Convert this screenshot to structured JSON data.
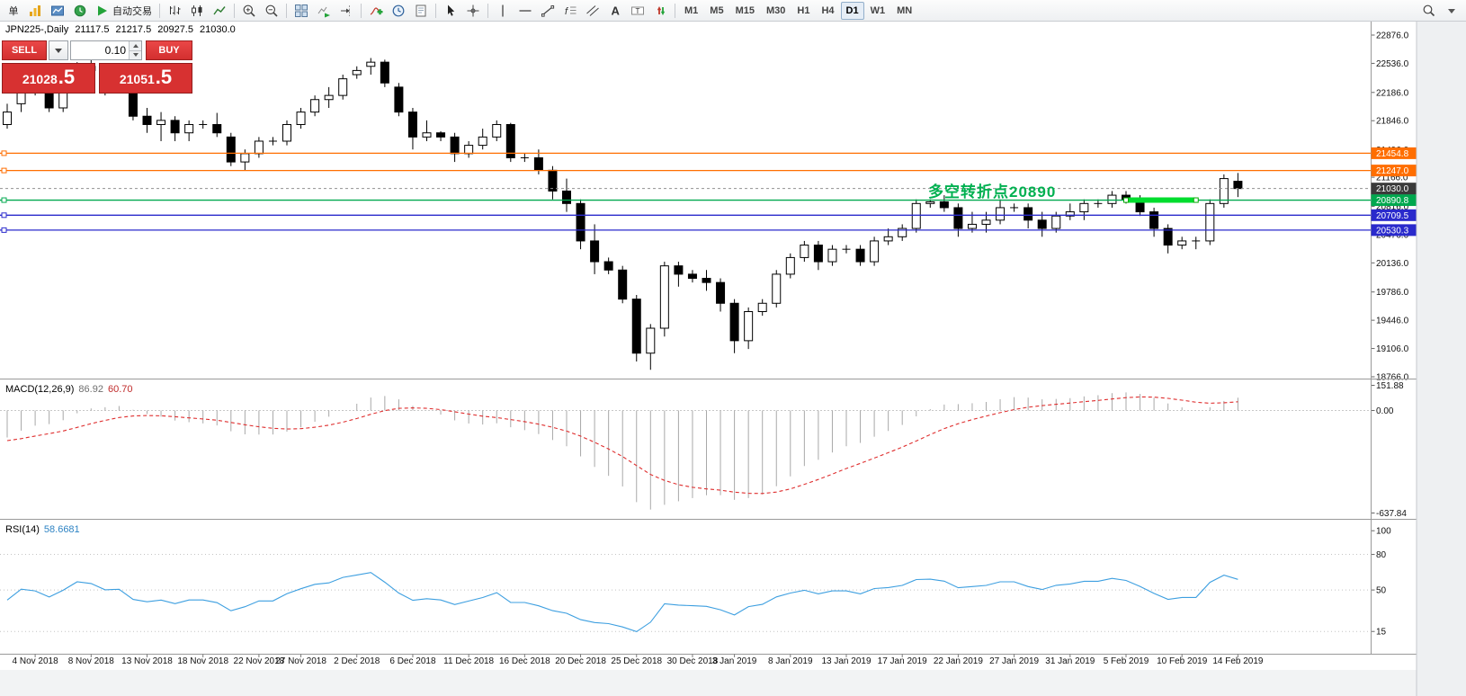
{
  "toolbar": {
    "groups": [
      {
        "items": [
          {
            "name": "new-order-button",
            "label": "单"
          },
          {
            "name": "profiles-button",
            "icon": "profiles-icon"
          },
          {
            "name": "new-chart-button",
            "icon": "new-chart-icon"
          },
          {
            "name": "market-watch-button",
            "icon": "market-watch-icon"
          },
          {
            "name": "autotrading-button",
            "icon": "play-icon",
            "label": "自动交易"
          }
        ]
      },
      {
        "items": [
          {
            "name": "bar-chart-button",
            "icon": "bar-chart-icon"
          },
          {
            "name": "candlestick-chart-button",
            "icon": "candlestick-chart-icon"
          },
          {
            "name": "line-chart-button",
            "icon": "line-chart-icon"
          }
        ]
      },
      {
        "items": [
          {
            "name": "zoom-in-button",
            "icon": "zoom-in-icon"
          },
          {
            "name": "zoom-out-button",
            "icon": "zoom-out-icon"
          }
        ]
      },
      {
        "items": [
          {
            "name": "tile-windows-button",
            "icon": "tile-windows-icon"
          },
          {
            "name": "auto-scroll-button",
            "icon": "auto-scroll-icon"
          },
          {
            "name": "chart-shift-button",
            "icon": "chart-shift-icon"
          }
        ]
      },
      {
        "items": [
          {
            "name": "indicators-button",
            "icon": "indicators-icon"
          },
          {
            "name": "periods-button",
            "icon": "periods-icon"
          },
          {
            "name": "templates-button",
            "icon": "template-icon"
          }
        ]
      },
      {
        "items": [
          {
            "name": "cursor-button",
            "icon": "cursor-icon"
          },
          {
            "name": "crosshair-button",
            "icon": "crosshair-icon"
          }
        ]
      },
      {
        "items": [
          {
            "name": "vertical-line-button",
            "icon": "vertical-line-icon"
          },
          {
            "name": "horizontal-line-button",
            "icon": "horizontal-line-icon"
          },
          {
            "name": "trendline-button",
            "icon": "trendline-icon"
          },
          {
            "name": "fibonacci-button",
            "icon": "fibonacci-icon"
          },
          {
            "name": "channel-button",
            "icon": "channel-icon"
          },
          {
            "name": "text-button",
            "icon": "text-icon"
          },
          {
            "name": "label-button",
            "icon": "label-icon"
          },
          {
            "name": "arrows-button",
            "icon": "arrows-icon"
          }
        ]
      }
    ],
    "timeframes": [
      "M1",
      "M5",
      "M15",
      "M30",
      "H1",
      "H4",
      "D1",
      "W1",
      "MN"
    ],
    "active_timeframe": "D1",
    "right_items": [
      {
        "name": "search-button",
        "icon": "search-icon"
      },
      {
        "name": "search-caret-button",
        "icon": "dropdown-icon"
      }
    ]
  },
  "symbol_header": {
    "symbol_period": "JPN225-,Daily",
    "open": "21117.5",
    "high": "21217.5",
    "low": "20927.5",
    "close": "21030.0"
  },
  "trade_panel": {
    "sell_label": "SELL",
    "buy_label": "BUY",
    "volume": "0.10",
    "sell_price": "21028",
    "sell_pips": ".5",
    "buy_price": "21051",
    "buy_pips": ".5"
  },
  "annotation": {
    "text": "多空转折点20890",
    "color": "#00b050"
  },
  "chart_data": {
    "type": "candlestick",
    "symbol": "JPN225-",
    "timeframe": "Daily",
    "price_range": {
      "min": 18766.0,
      "max": 22876.0
    },
    "y_ticks": [
      22876.0,
      22536.0,
      22186.0,
      21846.0,
      21496.0,
      21166.0,
      20816.0,
      20476.0,
      20136.0,
      19786.0,
      19446.0,
      19106.0,
      18766.0
    ],
    "x_ticks": [
      {
        "i": 2,
        "label": "4 Nov 2018"
      },
      {
        "i": 6,
        "label": "8 Nov 2018"
      },
      {
        "i": 10,
        "label": "13 Nov 2018"
      },
      {
        "i": 14,
        "label": "18 Nov 2018"
      },
      {
        "i": 18,
        "label": "22 Nov 2018"
      },
      {
        "i": 21,
        "label": "27 Nov 2018"
      },
      {
        "i": 25,
        "label": "2 Dec 2018"
      },
      {
        "i": 29,
        "label": "6 Dec 2018"
      },
      {
        "i": 33,
        "label": "11 Dec 2018"
      },
      {
        "i": 37,
        "label": "16 Dec 2018"
      },
      {
        "i": 41,
        "label": "20 Dec 2018"
      },
      {
        "i": 45,
        "label": "25 Dec 2018"
      },
      {
        "i": 49,
        "label": "30 Dec 2018"
      },
      {
        "i": 52,
        "label": "3 Jan 2019"
      },
      {
        "i": 56,
        "label": "8 Jan 2019"
      },
      {
        "i": 60,
        "label": "13 Jan 2019"
      },
      {
        "i": 64,
        "label": "17 Jan 2019"
      },
      {
        "i": 68,
        "label": "22 Jan 2019"
      },
      {
        "i": 72,
        "label": "27 Jan 2019"
      },
      {
        "i": 76,
        "label": "31 Jan 2019"
      },
      {
        "i": 80,
        "label": "5 Feb 2019"
      },
      {
        "i": 84,
        "label": "10 Feb 2019"
      },
      {
        "i": 88,
        "label": "14 Feb 2019"
      }
    ],
    "ohlc": [
      [
        21800,
        22050,
        21750,
        21950
      ],
      [
        22050,
        22350,
        21950,
        22250
      ],
      [
        22250,
        22300,
        22150,
        22200
      ],
      [
        22200,
        22250,
        21950,
        22000
      ],
      [
        22000,
        22250,
        21950,
        22200
      ],
      [
        22250,
        22550,
        22200,
        22500
      ],
      [
        22500,
        22580,
        22350,
        22450
      ],
      [
        22400,
        22450,
        22150,
        22250
      ],
      [
        22250,
        22300,
        22200,
        22270
      ],
      [
        22270,
        22350,
        21850,
        21900
      ],
      [
        21900,
        22000,
        21700,
        21800
      ],
      [
        21800,
        21950,
        21600,
        21850
      ],
      [
        21850,
        21900,
        21600,
        21700
      ],
      [
        21700,
        21850,
        21600,
        21800
      ],
      [
        21800,
        21850,
        21750,
        21800
      ],
      [
        21800,
        21940,
        21650,
        21700
      ],
      [
        21650,
        21700,
        21300,
        21350
      ],
      [
        21350,
        21500,
        21250,
        21450
      ],
      [
        21450,
        21650,
        21400,
        21600
      ],
      [
        21600,
        21650,
        21550,
        21600
      ],
      [
        21600,
        21850,
        21550,
        21800
      ],
      [
        21800,
        22000,
        21750,
        21950
      ],
      [
        21950,
        22150,
        21900,
        22100
      ],
      [
        22100,
        22250,
        22000,
        22150
      ],
      [
        22150,
        22400,
        22100,
        22350
      ],
      [
        22400,
        22500,
        22350,
        22450
      ],
      [
        22500,
        22600,
        22400,
        22550
      ],
      [
        22550,
        22580,
        22250,
        22300
      ],
      [
        22250,
        22300,
        21900,
        21950
      ],
      [
        21950,
        22000,
        21500,
        21650
      ],
      [
        21650,
        21850,
        21600,
        21700
      ],
      [
        21700,
        21720,
        21600,
        21650
      ],
      [
        21650,
        21700,
        21350,
        21450
      ],
      [
        21450,
        21600,
        21400,
        21550
      ],
      [
        21550,
        21750,
        21500,
        21650
      ],
      [
        21650,
        21850,
        21600,
        21800
      ],
      [
        21800,
        21820,
        21350,
        21400
      ],
      [
        21400,
        21450,
        21350,
        21400
      ],
      [
        21400,
        21500,
        21200,
        21250
      ],
      [
        21250,
        21300,
        20900,
        21000
      ],
      [
        21000,
        21150,
        20750,
        20850
      ],
      [
        20850,
        20900,
        20300,
        20400
      ],
      [
        20400,
        20600,
        20000,
        20150
      ],
      [
        20150,
        20200,
        20000,
        20050
      ],
      [
        20050,
        20100,
        19650,
        19700
      ],
      [
        19700,
        19750,
        18950,
        19050
      ],
      [
        19050,
        19400,
        18850,
        19350
      ],
      [
        19350,
        20150,
        19250,
        20100
      ],
      [
        20100,
        20150,
        19850,
        20000
      ],
      [
        20000,
        20050,
        19900,
        19950
      ],
      [
        19950,
        20050,
        19800,
        19900
      ],
      [
        19900,
        19950,
        19550,
        19650
      ],
      [
        19650,
        19700,
        19050,
        19200
      ],
      [
        19200,
        19600,
        19100,
        19550
      ],
      [
        19550,
        19700,
        19500,
        19650
      ],
      [
        19650,
        20050,
        19600,
        20000
      ],
      [
        20000,
        20250,
        19950,
        20200
      ],
      [
        20200,
        20400,
        20150,
        20350
      ],
      [
        20350,
        20400,
        20050,
        20150
      ],
      [
        20150,
        20350,
        20100,
        20300
      ],
      [
        20300,
        20350,
        20250,
        20300
      ],
      [
        20300,
        20350,
        20100,
        20150
      ],
      [
        20150,
        20450,
        20100,
        20400
      ],
      [
        20400,
        20550,
        20350,
        20450
      ],
      [
        20450,
        20600,
        20400,
        20550
      ],
      [
        20550,
        20900,
        20500,
        20850
      ],
      [
        20850,
        20900,
        20800,
        20870
      ],
      [
        20870,
        20950,
        20750,
        20800
      ],
      [
        20800,
        20850,
        20450,
        20550
      ],
      [
        20550,
        20750,
        20500,
        20600
      ],
      [
        20600,
        20750,
        20500,
        20650
      ],
      [
        20650,
        20900,
        20600,
        20800
      ],
      [
        20800,
        20850,
        20750,
        20800
      ],
      [
        20800,
        20850,
        20550,
        20650
      ],
      [
        20650,
        20750,
        20450,
        20550
      ],
      [
        20550,
        20750,
        20500,
        20700
      ],
      [
        20700,
        20850,
        20650,
        20750
      ],
      [
        20750,
        20900,
        20650,
        20850
      ],
      [
        20850,
        20900,
        20800,
        20850
      ],
      [
        20850,
        21000,
        20800,
        20950
      ],
      [
        20950,
        21000,
        20850,
        20900
      ],
      [
        20900,
        20950,
        20700,
        20750
      ],
      [
        20750,
        20800,
        20450,
        20550
      ],
      [
        20550,
        20600,
        20250,
        20350
      ],
      [
        20350,
        20450,
        20300,
        20400
      ],
      [
        20400,
        20450,
        20300,
        20400
      ],
      [
        20400,
        20900,
        20350,
        20850
      ],
      [
        20850,
        21200,
        20800,
        21150
      ],
      [
        21117.5,
        21217.5,
        20927.5,
        21030
      ]
    ],
    "hlines": [
      {
        "price": 21454.8,
        "label": "21454.8",
        "color": "#ff6e00"
      },
      {
        "price": 21247.0,
        "label": "21247.0",
        "color": "#ff6e00"
      },
      {
        "price": 20890.8,
        "label": "20890.8",
        "color": "#00a84e"
      },
      {
        "price": 20709.5,
        "label": "20709.5",
        "color": "#2a2acc"
      },
      {
        "price": 20530.3,
        "label": "20530.3",
        "color": "#2a2acc"
      }
    ],
    "current_price": {
      "value": 21030.0,
      "label": "21030.0",
      "bg": "#3a3a3a"
    },
    "highlight": {
      "price": 20890.8,
      "from_index": 80,
      "to_index": 85,
      "color": "#00dd2e"
    },
    "macd": {
      "name": "MACD(12,26,9)",
      "value_main": "86.92",
      "value_signal": "60.70",
      "scale": [
        "151.88",
        "0.00",
        "-637.84"
      ]
    },
    "rsi": {
      "name": "RSI(14)",
      "value": "58.6681",
      "scale": [
        "100",
        "80",
        "50",
        "15"
      ],
      "levels": [
        80,
        50,
        15
      ]
    },
    "style": {
      "bullish": "#ffffff",
      "bearish": "#000000",
      "outline": "#000000",
      "macd_histogram": "#a8a8a8",
      "macd_signal": "#df2e2e",
      "rsi_line": "#3d9fe0",
      "background": "#ffffff",
      "axis_text": "#111111"
    }
  }
}
